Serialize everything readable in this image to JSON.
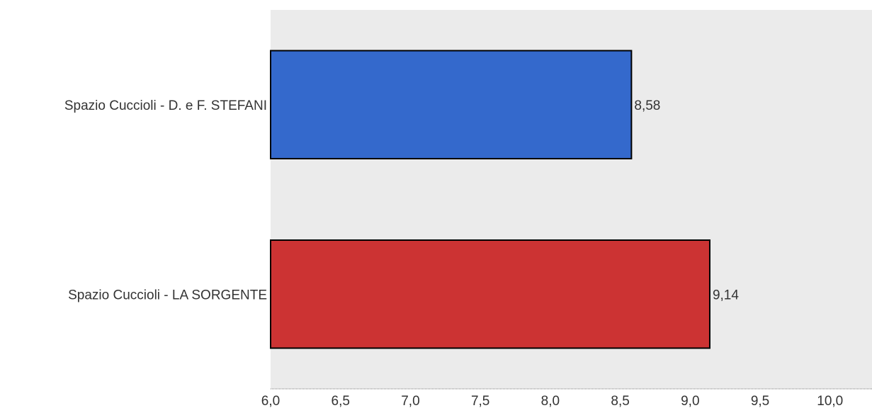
{
  "chart_data": {
    "type": "bar",
    "orientation": "horizontal",
    "categories": [
      "Spazio Cuccioli - D. e F. STEFANI",
      "Spazio Cuccioli - LA SORGENTE"
    ],
    "values": [
      8.58,
      9.14
    ],
    "value_labels": [
      "8,58",
      "9,14"
    ],
    "colors": [
      "#3469cc",
      "#cc3333"
    ],
    "xlim": [
      6.0,
      10.3
    ],
    "x_ticks": [
      6.0,
      6.5,
      7.0,
      7.5,
      8.0,
      8.5,
      9.0,
      9.5,
      10.0
    ],
    "x_tick_labels": [
      "6,0",
      "6,5",
      "7,0",
      "7,5",
      "8,0",
      "8,5",
      "9,0",
      "9,5",
      "10,0"
    ],
    "grid": false,
    "legend": "none",
    "plot_background": "#ebebeb"
  }
}
